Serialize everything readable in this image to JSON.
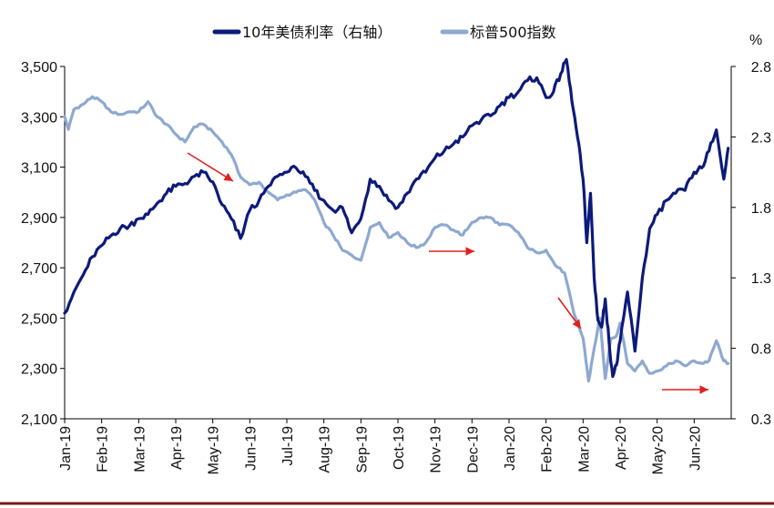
{
  "chart_data": {
    "type": "line",
    "title": "",
    "right_unit": "%",
    "x_labels": [
      "Jan-19",
      "Feb-19",
      "Mar-19",
      "Apr-19",
      "May-19",
      "Jun-19",
      "Jul-19",
      "Aug-19",
      "Sep-19",
      "Oct-19",
      "Nov-19",
      "Dec-19",
      "Jan-20",
      "Feb-20",
      "Mar-20",
      "Apr-20",
      "May-20",
      "Jun-20"
    ],
    "y_left": {
      "min": 2100,
      "max": 3500,
      "ticks": [
        "2,100",
        "2,300",
        "2,500",
        "2,700",
        "2,900",
        "3,100",
        "3,300",
        "3,500"
      ]
    },
    "y_right": {
      "min": 0.3,
      "max": 2.8,
      "ticks": [
        "0.3",
        "0.8",
        "1.3",
        "1.8",
        "2.3",
        "2.8"
      ]
    },
    "series": [
      {
        "name": "10年美债利率（右轴）",
        "axis": "right",
        "color": "#0d1a7a",
        "months": [
          0,
          0.25,
          0.5,
          0.75,
          1,
          1.25,
          1.5,
          1.75,
          2,
          2.25,
          2.5,
          2.75,
          3,
          3.25,
          3.5,
          3.75,
          4,
          4.25,
          4.5,
          4.75,
          5,
          5.25,
          5.5,
          5.75,
          6,
          6.25,
          6.5,
          6.75,
          7,
          7.25,
          7.5,
          7.75,
          8,
          8.25,
          8.5,
          8.75,
          9,
          9.25,
          9.5,
          9.75,
          10,
          10.25,
          10.5,
          10.75,
          11,
          11.25,
          11.5,
          11.75,
          12,
          12.25,
          12.5,
          12.75,
          13,
          13.2,
          13.4,
          13.55,
          13.7,
          13.85,
          14,
          14.1,
          14.2,
          14.3,
          14.4,
          14.5,
          14.6,
          14.7,
          14.8,
          14.9,
          15,
          15.2,
          15.4,
          15.6,
          15.8,
          16,
          16.25,
          16.5,
          16.75,
          17,
          17.2,
          17.4,
          17.6,
          17.8,
          17.92
        ],
        "values": [
          1.05,
          1.2,
          1.32,
          1.45,
          1.53,
          1.6,
          1.65,
          1.67,
          1.72,
          1.75,
          1.83,
          1.9,
          1.95,
          1.97,
          2.02,
          2.05,
          1.98,
          1.82,
          1.72,
          1.58,
          1.78,
          1.85,
          1.95,
          2.02,
          2.05,
          2.08,
          2.02,
          1.92,
          1.85,
          1.78,
          1.8,
          1.62,
          1.72,
          2.0,
          1.95,
          1.85,
          1.8,
          1.9,
          2.0,
          2.05,
          2.15,
          2.2,
          2.25,
          2.3,
          2.38,
          2.42,
          2.45,
          2.52,
          2.58,
          2.62,
          2.7,
          2.72,
          2.58,
          2.62,
          2.75,
          2.85,
          2.55,
          2.3,
          2.0,
          1.55,
          1.9,
          1.3,
          1.0,
          0.95,
          1.15,
          0.85,
          0.6,
          0.68,
          0.85,
          1.2,
          0.78,
          1.3,
          1.65,
          1.75,
          1.85,
          1.9,
          1.92,
          2.05,
          2.08,
          2.2,
          2.35,
          2.0,
          2.22
        ]
      },
      {
        "name": "标普500指数",
        "axis": "left",
        "color": "#8ea9d0",
        "months": [
          0,
          0.1,
          0.25,
          0.5,
          0.75,
          1,
          1.25,
          1.5,
          1.75,
          2,
          2.25,
          2.5,
          2.75,
          3,
          3.25,
          3.5,
          3.75,
          4,
          4.25,
          4.5,
          4.75,
          5,
          5.25,
          5.5,
          5.75,
          6,
          6.25,
          6.5,
          6.75,
          7,
          7.25,
          7.5,
          7.75,
          8,
          8.25,
          8.5,
          8.75,
          9,
          9.25,
          9.5,
          9.75,
          10,
          10.25,
          10.5,
          10.75,
          11,
          11.25,
          11.5,
          11.75,
          12,
          12.25,
          12.5,
          12.75,
          13,
          13.25,
          13.5,
          13.75,
          14,
          14.15,
          14.3,
          14.45,
          14.6,
          14.75,
          14.9,
          15,
          15.2,
          15.4,
          15.6,
          15.8,
          16,
          16.25,
          16.5,
          16.75,
          17,
          17.2,
          17.4,
          17.6,
          17.8,
          17.92
        ],
        "values": [
          3300,
          3250,
          3330,
          3350,
          3380,
          3360,
          3320,
          3310,
          3320,
          3320,
          3360,
          3300,
          3270,
          3230,
          3200,
          3260,
          3270,
          3240,
          3200,
          3150,
          3060,
          3030,
          3040,
          3000,
          2970,
          2990,
          3000,
          3010,
          2970,
          2880,
          2830,
          2770,
          2750,
          2730,
          2860,
          2880,
          2820,
          2840,
          2800,
          2780,
          2800,
          2860,
          2870,
          2850,
          2830,
          2880,
          2900,
          2900,
          2870,
          2870,
          2840,
          2780,
          2760,
          2770,
          2710,
          2680,
          2520,
          2420,
          2250,
          2380,
          2500,
          2260,
          2420,
          2430,
          2480,
          2320,
          2290,
          2330,
          2280,
          2290,
          2310,
          2330,
          2310,
          2330,
          2320,
          2330,
          2410,
          2330,
          2320
        ]
      }
    ],
    "annotations": [
      {
        "type": "arrow",
        "direction": "down-right",
        "color": "#e02020"
      },
      {
        "type": "arrow",
        "direction": "right",
        "color": "#e02020"
      },
      {
        "type": "arrow",
        "direction": "down-right",
        "color": "#e02020"
      },
      {
        "type": "arrow",
        "direction": "right",
        "color": "#e02020"
      }
    ],
    "legend_position": "top-center",
    "grid": false
  }
}
